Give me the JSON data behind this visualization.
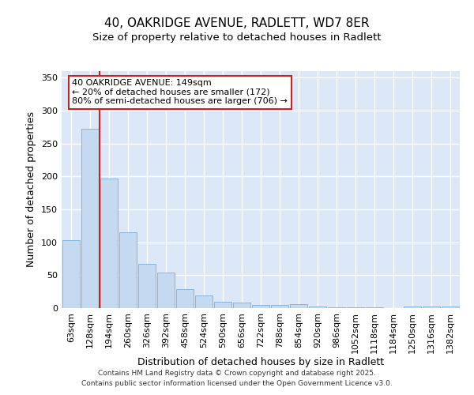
{
  "title1": "40, OAKRIDGE AVENUE, RADLETT, WD7 8ER",
  "title2": "Size of property relative to detached houses in Radlett",
  "xlabel": "Distribution of detached houses by size in Radlett",
  "ylabel": "Number of detached properties",
  "categories": [
    "63sqm",
    "128sqm",
    "194sqm",
    "260sqm",
    "326sqm",
    "392sqm",
    "458sqm",
    "524sqm",
    "590sqm",
    "656sqm",
    "722sqm",
    "788sqm",
    "854sqm",
    "920sqm",
    "986sqm",
    "1052sqm",
    "1118sqm",
    "1184sqm",
    "1250sqm",
    "1316sqm",
    "1382sqm"
  ],
  "values": [
    103,
    272,
    197,
    115,
    67,
    54,
    29,
    19,
    10,
    9,
    5,
    5,
    6,
    3,
    1,
    1,
    1,
    0,
    2,
    3,
    2
  ],
  "bar_color": "#c5d9f0",
  "bar_edge_color": "#7aafd4",
  "plot_bg_color": "#dce8f8",
  "fig_bg_color": "#ffffff",
  "grid_color": "#ffffff",
  "vline_x": 1.5,
  "vline_color": "#cc2222",
  "annotation_line1": "40 OAKRIDGE AVENUE: 149sqm",
  "annotation_line2": "← 20% of detached houses are smaller (172)",
  "annotation_line3": "80% of semi-detached houses are larger (706) →",
  "annotation_box_edgecolor": "#cc2222",
  "ylim": [
    0,
    360
  ],
  "yticks": [
    0,
    50,
    100,
    150,
    200,
    250,
    300,
    350
  ],
  "footer_line1": "Contains HM Land Registry data © Crown copyright and database right 2025.",
  "footer_line2": "Contains public sector information licensed under the Open Government Licence v3.0.",
  "title_fontsize": 11,
  "subtitle_fontsize": 9.5,
  "axis_label_fontsize": 9,
  "tick_fontsize": 8,
  "annotation_fontsize": 8,
  "footer_fontsize": 6.5
}
